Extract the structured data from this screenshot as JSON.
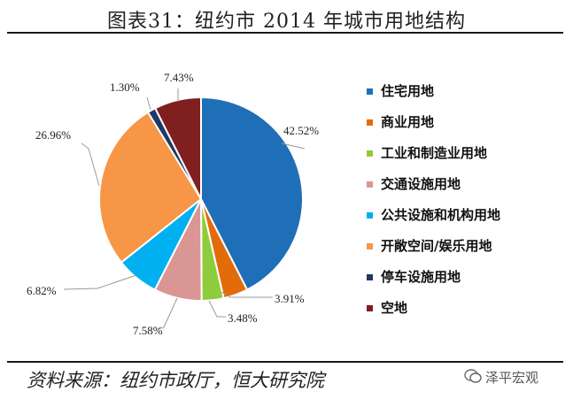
{
  "title": "图表31：纽约市 2014 年城市用地结构",
  "source": "资料来源：纽约市政厅，恒大研究院",
  "watermark": "泽平宏观",
  "chart_data": {
    "type": "pie",
    "title": "",
    "start_angle_deg": 0,
    "direction": "clockwise",
    "legend_position": "right",
    "slices": [
      {
        "label": "住宅用地",
        "value": 42.52,
        "display": "42.52%",
        "color": "#1f6fb8"
      },
      {
        "label": "商业用地",
        "value": 3.91,
        "display": "3.91%",
        "color": "#e36c0a"
      },
      {
        "label": "工业和制造业用地",
        "value": 3.48,
        "display": "3.48%",
        "color": "#8fcc3c"
      },
      {
        "label": "交通设施用地",
        "value": 7.58,
        "display": "7.58%",
        "color": "#d99694"
      },
      {
        "label": "公共设施和机构用地",
        "value": 6.82,
        "display": "6.82%",
        "color": "#00b0f0"
      },
      {
        "label": "开敞空间/娱乐用地",
        "value": 26.96,
        "display": "26.96%",
        "color": "#f79646"
      },
      {
        "label": "停车设施用地",
        "value": 1.3,
        "display": "1.30%",
        "color": "#1f3864"
      },
      {
        "label": "空地",
        "value": 7.43,
        "display": "7.43%",
        "color": "#7f1f1f"
      }
    ]
  }
}
